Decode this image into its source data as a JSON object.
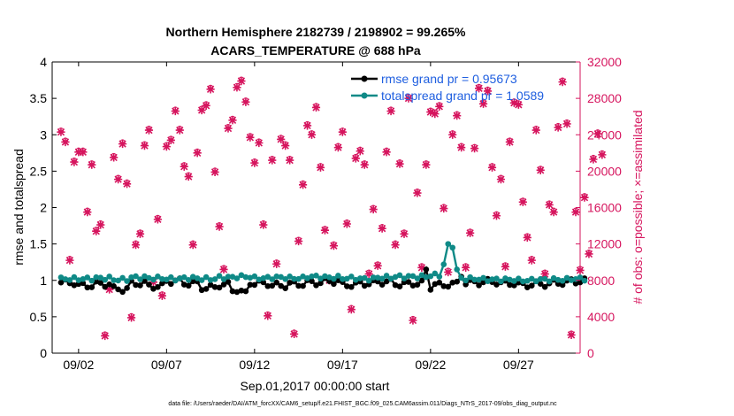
{
  "chart_data": {
    "type": "line",
    "title_line1": "Northern Hemisphere 2182739 / 2198902 = 99.265%",
    "title_line2": "ACARS_TEMPERATURE @ 688 hPa",
    "xlabel": "Sep.01,2017 00:00:00 start",
    "ylabel_left": "rmse and totalspread",
    "ylabel_right": "# of obs: o=possible; ×=assimilated",
    "xlim": [
      0.5,
      30.5
    ],
    "ylim_left": [
      0,
      4
    ],
    "ylim_right": [
      0,
      32000
    ],
    "x_ticks": [
      2,
      7,
      12,
      17,
      22,
      27
    ],
    "x_ticklabels": [
      "09/02",
      "09/07",
      "09/12",
      "09/17",
      "09/22",
      "09/27"
    ],
    "y_ticks_left": [
      "0",
      "0.5",
      "1",
      "1.5",
      "2",
      "2.5",
      "3",
      "3.5",
      "4"
    ],
    "y_ticks_right": [
      "0",
      "4000",
      "8000",
      "12000",
      "16000",
      "20000",
      "24000",
      "28000",
      "32000"
    ],
    "legend": {
      "rmse": "rmse grand pr = 0.95673",
      "spread": "totalspread grand pr = 1.0589"
    },
    "footnote": "data file: /Users/raeder/DAI/ATM_forcXX/CAM6_setup/f.e21.FHIST_BGC.f09_025.CAM6assim.011/Diags_NTrS_2017-09/obs_diag_output.nc",
    "colors": {
      "rmse": "#000000",
      "spread": "#0f8a87",
      "obs": "#d6155e"
    },
    "rmse_base": [
      0.97,
      0.93,
      0.95,
      0.88,
      0.96,
      0.92,
      0.99,
      0.96,
      0.9,
      0.94,
      0.97,
      0.96,
      0.93,
      0.95,
      0.97,
      0.99,
      0.94,
      0.96,
      0.98,
      0.95,
      0.96,
      0.93,
      0.95,
      0.97,
      0.98,
      0.96,
      0.94,
      0.95,
      0.97,
      0.99
    ],
    "rmse_dips": [
      {
        "day": 10.75,
        "value": 0.85
      },
      {
        "day": 11.0,
        "value": 0.84
      },
      {
        "day": 11.25,
        "value": 0.86
      },
      {
        "day": 11.5,
        "value": 0.85
      },
      {
        "day": 21.75,
        "value": 1.15
      },
      {
        "day": 22.0,
        "value": 0.87
      },
      {
        "day": 22.25,
        "value": 0.95
      },
      {
        "day": 23.75,
        "value": 1.05
      }
    ],
    "spread_base": [
      1.02,
      1.02,
      1.03,
      1.01,
      1.04,
      1.03,
      1.02,
      1.03,
      1.02,
      1.04,
      1.05,
      1.03,
      1.04,
      1.03,
      1.05,
      1.04,
      1.03,
      1.02,
      1.04,
      1.05,
      1.05,
      1.07,
      1.03,
      1.02,
      1.01,
      1.01,
      1.0,
      1.01,
      1.01,
      1.02
    ],
    "spread_peak": [
      {
        "day": 22.75,
        "value": 1.22
      },
      {
        "day": 23.0,
        "value": 1.5
      },
      {
        "day": 23.25,
        "value": 1.45
      },
      {
        "day": 23.5,
        "value": 1.15
      }
    ],
    "obs_counts": [
      24300,
      23200,
      10200,
      21000,
      22100,
      22100,
      15500,
      20700,
      13400,
      14100,
      1900,
      7000,
      21500,
      19100,
      23000,
      18600,
      3900,
      11900,
      13100,
      22800,
      24500,
      7800,
      14700,
      6300,
      22700,
      23400,
      26600,
      24500,
      20500,
      19400,
      11900,
      22000,
      26700,
      27200,
      29000,
      19900,
      13900,
      9200,
      24700,
      25600,
      29200,
      29900,
      27600,
      23700,
      20900,
      23100,
      14100,
      4100,
      21200,
      9800,
      23500,
      22800,
      21200,
      2100,
      12300,
      18500,
      25000,
      24000,
      27000,
      20400,
      13500,
      8000,
      11800,
      22600,
      24300,
      14200,
      4800,
      21400,
      22200,
      20700,
      8700,
      15800,
      9600,
      13700,
      22100,
      26600,
      11900,
      20800,
      13100,
      28000,
      3600,
      17600,
      9400,
      20700,
      26500,
      26300,
      27100,
      15900,
      8900,
      24000,
      26100,
      22600,
      9400,
      13200,
      22500,
      29100,
      27400,
      28800,
      20400,
      15100,
      19100,
      9500,
      23200,
      27500,
      27300,
      16600,
      12700,
      10200,
      24500,
      20100,
      8700,
      16300,
      15500,
      24800,
      29800,
      25200,
      2000,
      15500,
      9100,
      17100,
      10900,
      21300,
      24100,
      21800
    ]
  }
}
